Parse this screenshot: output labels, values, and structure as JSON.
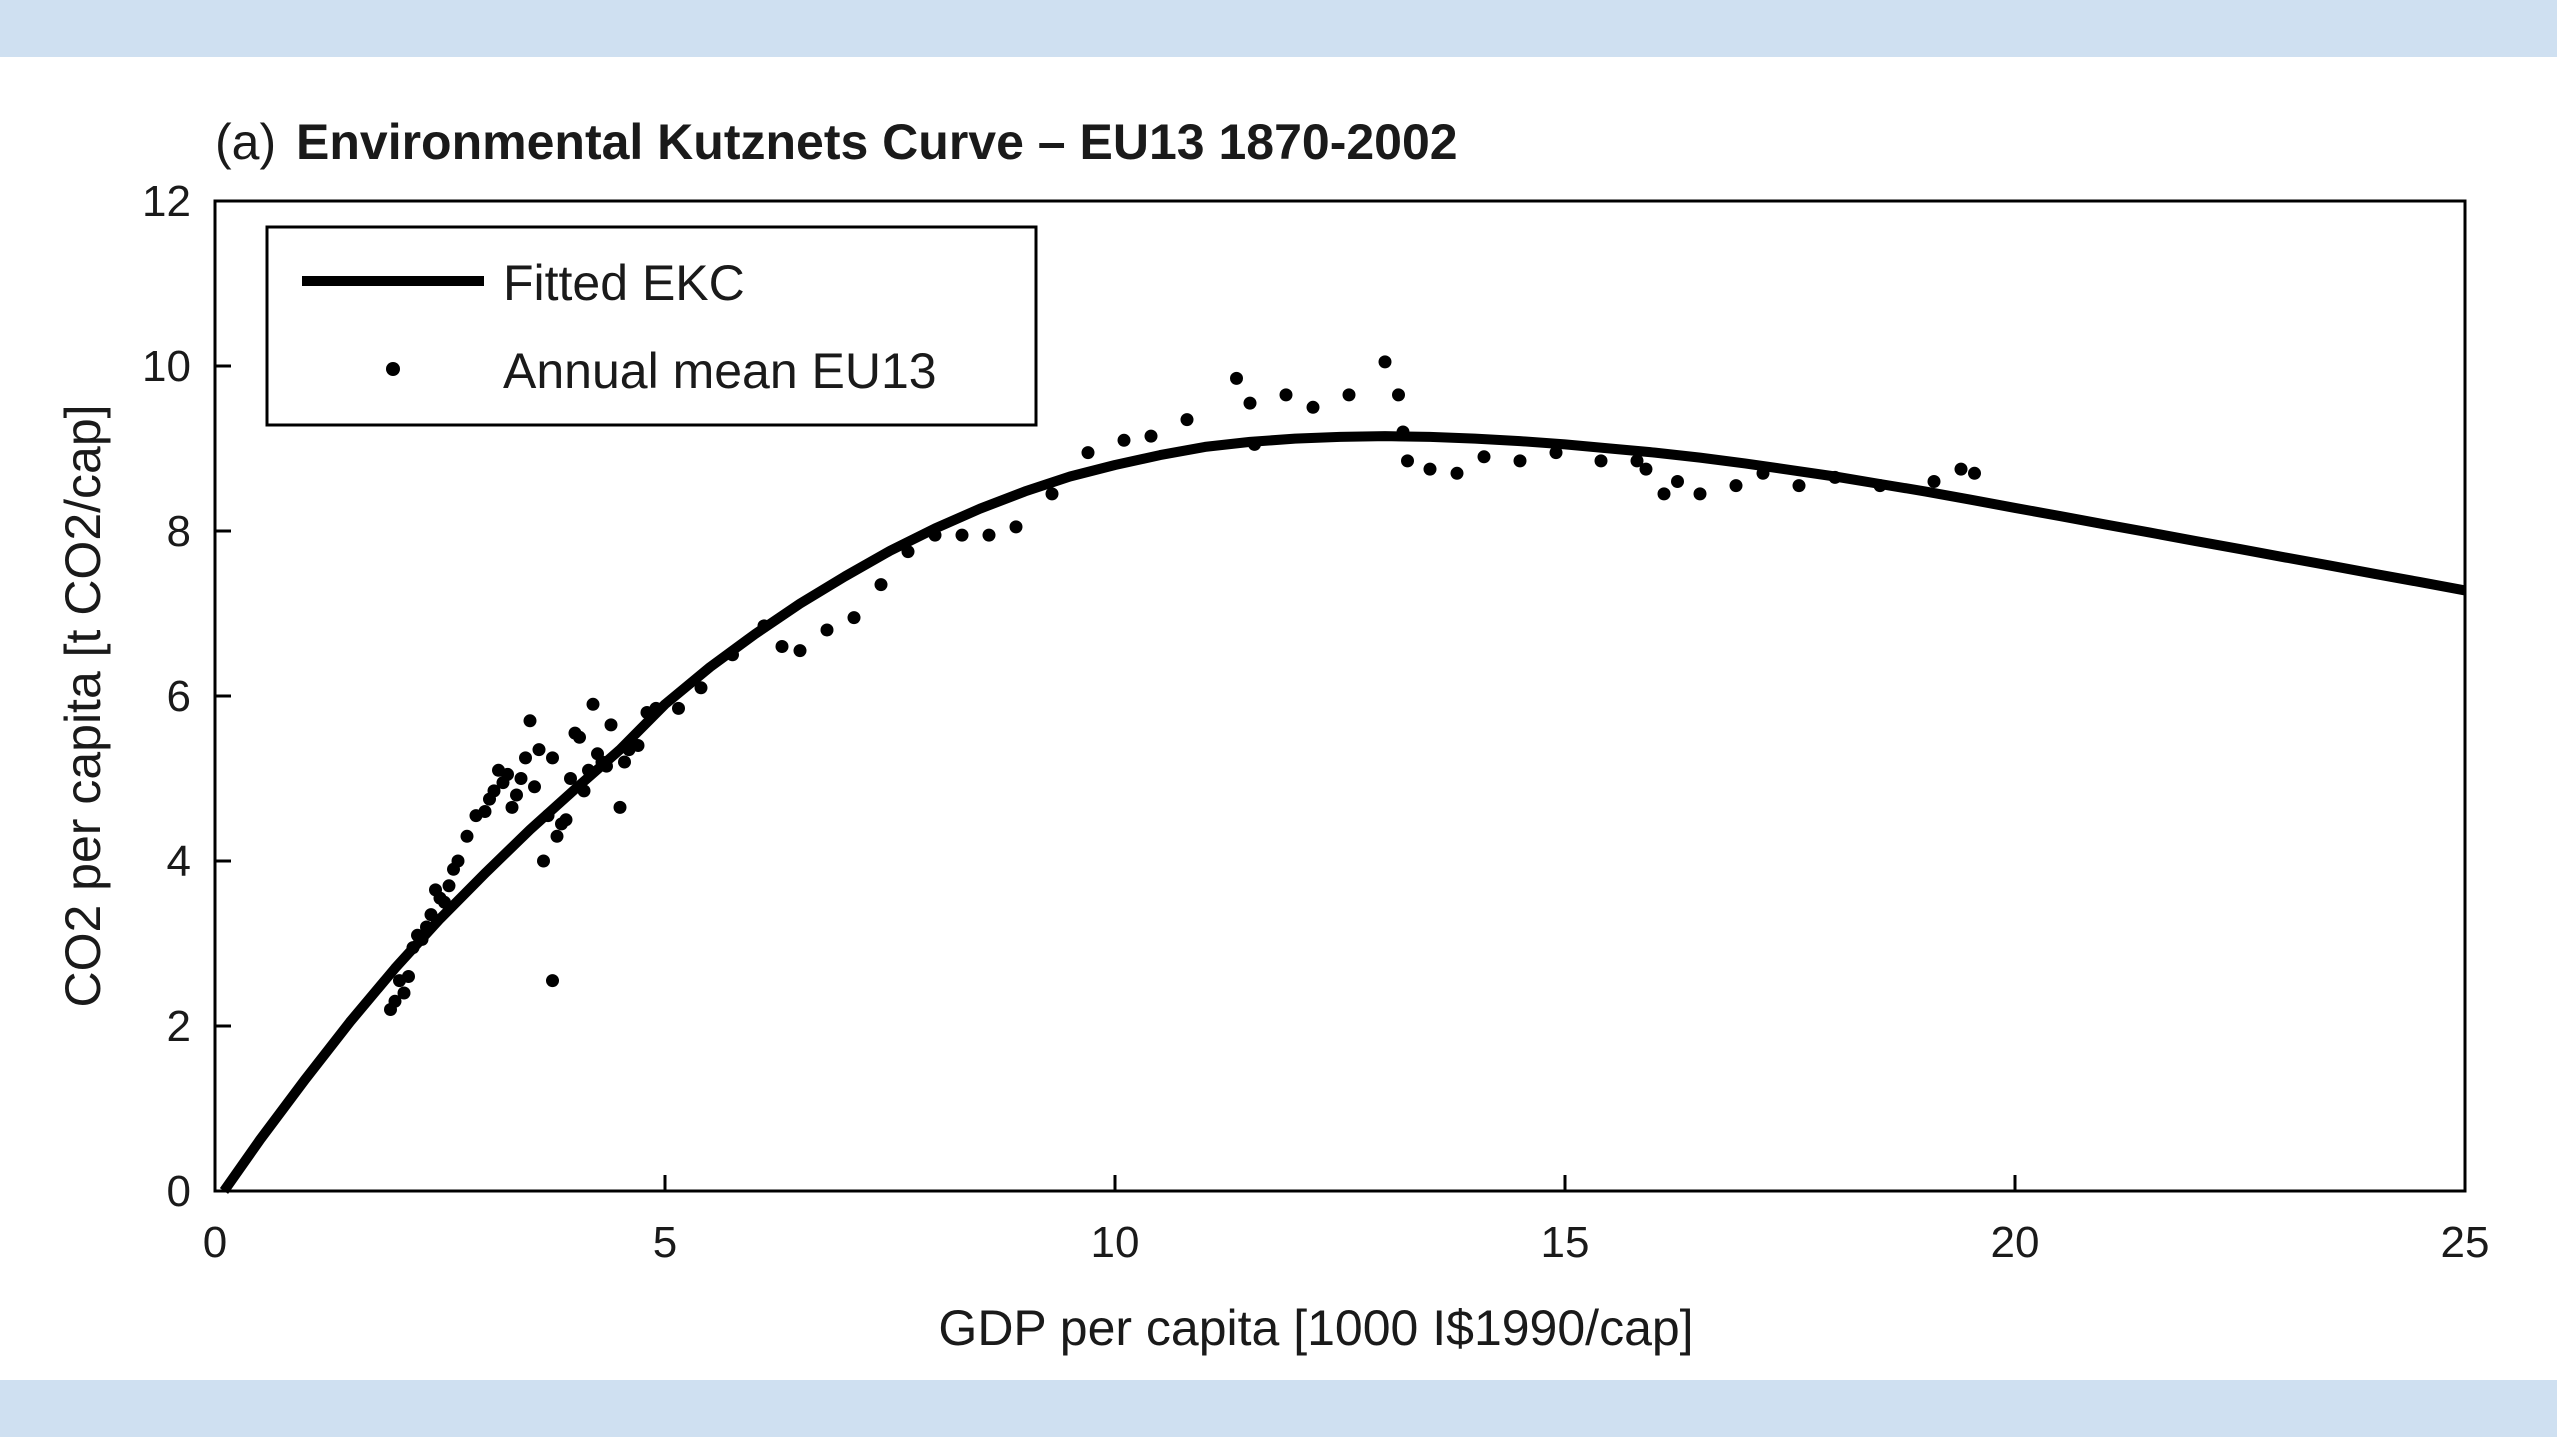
{
  "colors": {
    "band": "#cfe0f1",
    "ink": "#000000"
  },
  "chart_data": {
    "type": "scatter",
    "title_prefix": "(a)",
    "title": "Environmental Kutznets Curve – EU13 1870-2002",
    "xlabel": "GDP per capita [1000 I$1990/cap]",
    "ylabel": "CO2 per capita [t CO2/cap]",
    "xlim": [
      0,
      25
    ],
    "ylim": [
      0,
      12
    ],
    "xticks": [
      0,
      5,
      10,
      15,
      20,
      25
    ],
    "yticks": [
      0,
      2,
      4,
      6,
      8,
      10,
      12
    ],
    "grid": false,
    "legend_position": "top-left",
    "legend": [
      {
        "label": "Fitted EKC",
        "kind": "line"
      },
      {
        "label": "Annual mean EU13",
        "kind": "marker"
      }
    ],
    "series": [
      {
        "name": "Fitted EKC",
        "kind": "line",
        "x": [
          0.1,
          0.5,
          1,
          1.5,
          2,
          2.5,
          3,
          3.5,
          4,
          4.5,
          5,
          5.5,
          6,
          6.5,
          7,
          7.5,
          8,
          8.5,
          9,
          9.5,
          10,
          10.5,
          11,
          11.5,
          12,
          12.5,
          13,
          13.5,
          14,
          14.5,
          15,
          15.5,
          16,
          16.5,
          17,
          17.5,
          18,
          18.5,
          19,
          19.5,
          20,
          20.5,
          21,
          21.5,
          22,
          22.5,
          23,
          23.5,
          24,
          24.5,
          25
        ],
        "y": [
          0.0,
          0.62,
          1.35,
          2.05,
          2.7,
          3.3,
          3.85,
          4.38,
          4.87,
          5.35,
          5.9,
          6.35,
          6.75,
          7.12,
          7.45,
          7.76,
          8.03,
          8.27,
          8.48,
          8.66,
          8.8,
          8.92,
          9.02,
          9.08,
          9.12,
          9.14,
          9.15,
          9.14,
          9.12,
          9.09,
          9.05,
          9.0,
          8.95,
          8.89,
          8.82,
          8.74,
          8.66,
          8.57,
          8.48,
          8.38,
          8.28,
          8.18,
          8.08,
          7.98,
          7.88,
          7.78,
          7.68,
          7.58,
          7.48,
          7.38,
          7.28
        ]
      },
      {
        "name": "Annual mean EU13",
        "kind": "scatter",
        "x": [
          1.95,
          2.0,
          2.05,
          2.1,
          2.15,
          2.2,
          2.25,
          2.3,
          2.35,
          2.4,
          2.45,
          2.5,
          2.55,
          2.6,
          2.65,
          2.7,
          2.8,
          2.9,
          3.0,
          3.05,
          3.1,
          3.15,
          3.2,
          3.25,
          3.3,
          3.35,
          3.4,
          3.45,
          3.5,
          3.55,
          3.6,
          3.65,
          3.7,
          3.75,
          3.8,
          3.85,
          3.9,
          3.95,
          4.0,
          4.05,
          4.1,
          4.15,
          4.2,
          4.25,
          4.3,
          4.35,
          4.4,
          4.5,
          4.55,
          4.6,
          4.7,
          4.8,
          4.9,
          5.15,
          5.4,
          5.75,
          6.1,
          6.3,
          6.5,
          6.8,
          7.1,
          7.4,
          7.7,
          8.0,
          8.3,
          8.6,
          8.9,
          9.3,
          9.7,
          10.1,
          10.4,
          10.8,
          11.35,
          11.5,
          11.55,
          11.9,
          12.2,
          12.6,
          13.0,
          13.15,
          13.2,
          13.25,
          13.5,
          13.8,
          14.1,
          14.5,
          14.9,
          15.4,
          15.8,
          15.9,
          16.1,
          16.25,
          16.5,
          16.9,
          17.2,
          17.6,
          18.0,
          18.5,
          19.1,
          19.4,
          19.55,
          3.75
        ],
        "y": [
          2.2,
          2.3,
          2.55,
          2.4,
          2.6,
          2.95,
          3.1,
          3.05,
          3.2,
          3.35,
          3.65,
          3.55,
          3.5,
          3.7,
          3.9,
          4.0,
          4.3,
          4.55,
          4.6,
          4.75,
          4.85,
          5.1,
          4.95,
          5.05,
          4.65,
          4.8,
          5.0,
          5.25,
          5.7,
          4.9,
          5.35,
          4.0,
          4.55,
          5.25,
          4.3,
          4.45,
          4.5,
          5.0,
          5.55,
          5.5,
          4.85,
          5.1,
          5.9,
          5.3,
          5.2,
          5.15,
          5.65,
          4.65,
          5.2,
          5.35,
          5.4,
          5.8,
          5.85,
          5.85,
          6.1,
          6.5,
          6.85,
          6.6,
          6.55,
          6.8,
          6.95,
          7.35,
          7.75,
          7.95,
          7.95,
          7.95,
          8.05,
          8.45,
          8.95,
          9.1,
          9.15,
          9.35,
          9.85,
          9.55,
          9.05,
          9.65,
          9.5,
          9.65,
          10.05,
          9.65,
          9.2,
          8.85,
          8.75,
          8.7,
          8.9,
          8.85,
          8.95,
          8.85,
          8.85,
          8.75,
          8.45,
          8.6,
          8.45,
          8.55,
          8.7,
          8.55,
          8.65,
          8.55,
          8.6,
          8.75,
          8.7,
          2.55
        ]
      }
    ]
  }
}
